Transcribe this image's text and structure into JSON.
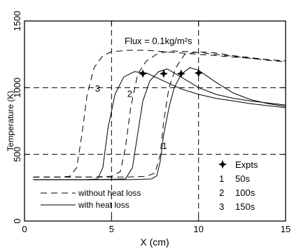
{
  "chart_data": {
    "type": "line",
    "title": "",
    "annotation": "Flux = 0.1kg/m²s",
    "xlabel": "X (cm)",
    "ylabel": "Temperature (K)",
    "xlim": [
      0,
      15
    ],
    "ylim": [
      0,
      1500
    ],
    "xticks": [
      0,
      5,
      10,
      15
    ],
    "xtick_labels": [
      "0",
      "5",
      "10",
      "15"
    ],
    "yticks": [
      0,
      500,
      1000,
      1500
    ],
    "ytick_labels": [
      "0",
      "500",
      "1000",
      "1500"
    ],
    "ref_lines": {
      "x": [
        5,
        10
      ],
      "y": [
        500,
        1000
      ]
    },
    "grid": false,
    "series": [
      {
        "name": "without heat loss",
        "style": "dashed",
        "time_label": "1",
        "x": [
          0.5,
          2,
          4,
          6,
          7,
          7.5,
          7.8,
          8.0,
          8.3,
          8.7,
          9.2,
          10,
          11,
          12,
          13,
          14,
          15
        ],
        "y": [
          330,
          330,
          330,
          330,
          335,
          360,
          500,
          750,
          1000,
          1150,
          1250,
          1270,
          1260,
          1240,
          1225,
          1210,
          1200
        ]
      },
      {
        "name": "without heat loss",
        "style": "dashed",
        "time_label": "2",
        "x": [
          0.5,
          2,
          4,
          5,
          5.5,
          5.8,
          6.1,
          6.5,
          7.0,
          7.7,
          8.5,
          9.5,
          11,
          12,
          13,
          14,
          15
        ],
        "y": [
          330,
          330,
          330,
          335,
          370,
          550,
          850,
          1100,
          1200,
          1260,
          1275,
          1270,
          1250,
          1235,
          1220,
          1205,
          1195
        ]
      },
      {
        "name": "without heat loss",
        "style": "dashed",
        "time_label": "3",
        "x": [
          0.5,
          2,
          2.6,
          3.0,
          3.3,
          3.6,
          4.0,
          4.5,
          5.0,
          6.0,
          7.0,
          8.0,
          9.0,
          10,
          12,
          14,
          15
        ],
        "y": [
          330,
          330,
          335,
          400,
          650,
          950,
          1150,
          1240,
          1270,
          1280,
          1280,
          1270,
          1260,
          1250,
          1230,
          1210,
          1200
        ]
      },
      {
        "name": "with heat loss",
        "style": "solid",
        "time_label": "1",
        "x": [
          0.5,
          4,
          6,
          7.3,
          7.6,
          7.8,
          8.0,
          8.3,
          8.6,
          9.0,
          9.5,
          10,
          11,
          12,
          13,
          14,
          15
        ],
        "y": [
          310,
          310,
          310,
          315,
          340,
          450,
          650,
          850,
          1000,
          1100,
          1150,
          1130,
          1040,
          960,
          910,
          880,
          860
        ]
      },
      {
        "name": "with heat loss",
        "style": "solid",
        "time_label": "2",
        "x": [
          0.5,
          4,
          5.8,
          6.2,
          6.5,
          6.8,
          7.2,
          7.7,
          8.2,
          9.0,
          10,
          11,
          12,
          13,
          14,
          15
        ],
        "y": [
          310,
          310,
          315,
          400,
          650,
          900,
          1050,
          1120,
          1140,
          1080,
          1000,
          950,
          920,
          900,
          885,
          870
        ]
      },
      {
        "name": "with heat loss",
        "style": "solid",
        "time_label": "3",
        "x": [
          0.5,
          3.5,
          4.2,
          4.5,
          4.8,
          5.2,
          5.7,
          6.3,
          7.0,
          8.0,
          9.0,
          10,
          11,
          12,
          13,
          14,
          15
        ],
        "y": [
          310,
          310,
          315,
          400,
          700,
          950,
          1080,
          1120,
          1110,
          1050,
          990,
          950,
          920,
          900,
          880,
          865,
          850
        ]
      }
    ],
    "experiments": {
      "name": "Expts",
      "x": [
        6.8,
        8.0,
        9.0,
        10.0
      ],
      "y": [
        1105,
        1105,
        1105,
        1110
      ]
    },
    "curve_labels": [
      {
        "text": "1",
        "x": 7.9,
        "y": 540
      },
      {
        "text": "2",
        "x": 5.9,
        "y": 930
      },
      {
        "text": "3",
        "x": 4.05,
        "y": 970
      }
    ],
    "legend": {
      "position": "bottom-left and bottom-right",
      "line_entries": [
        {
          "style": "dashed",
          "label": "without heat loss"
        },
        {
          "style": "solid",
          "label": "with heat loss"
        }
      ],
      "marker_label": "Expts",
      "time_entries": [
        {
          "num": "1",
          "time": "50s"
        },
        {
          "num": "2",
          "time": "100s"
        },
        {
          "num": "3",
          "time": "150s"
        }
      ]
    }
  }
}
